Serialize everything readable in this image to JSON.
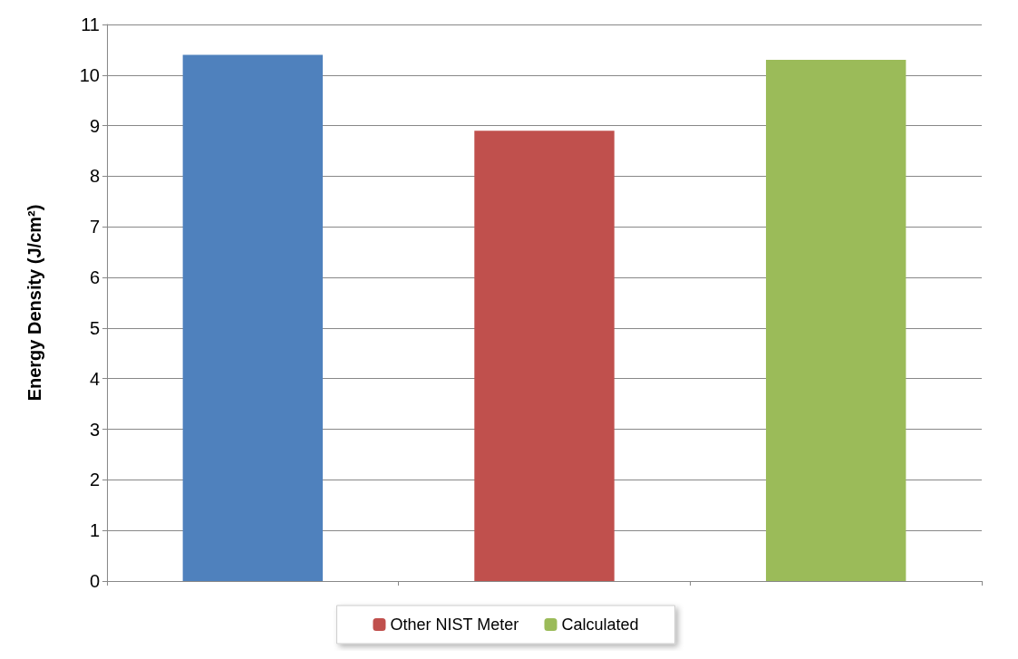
{
  "chart_data": {
    "type": "bar",
    "ylabel": "Energy Density (J/cm²)",
    "categories": [
      null,
      null,
      null
    ],
    "series": [
      {
        "color": "#4f81bd",
        "values": [
          10.4,
          null,
          null
        ]
      },
      {
        "name": "Other NIST Meter",
        "color": "#c0504d",
        "values": [
          null,
          8.9,
          null
        ]
      },
      {
        "name": "Calculated",
        "color": "#9bbb59",
        "values": [
          null,
          null,
          10.3
        ]
      }
    ],
    "ylim": [
      0,
      11
    ],
    "yticks": [
      0,
      1,
      2,
      3,
      4,
      5,
      6,
      7,
      8,
      9,
      10,
      11
    ],
    "grid": "y",
    "legend": "bottom"
  }
}
